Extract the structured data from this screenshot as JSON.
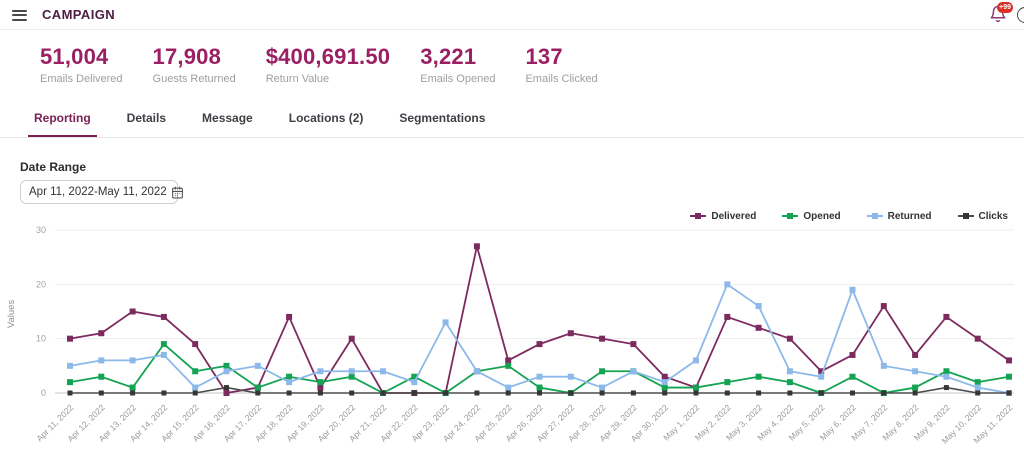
{
  "header": {
    "title": "CAMPAIGN",
    "notifications_badge": "+99"
  },
  "stats": [
    {
      "value": "51,004",
      "label": "Emails Delivered"
    },
    {
      "value": "17,908",
      "label": "Guests Returned"
    },
    {
      "value": "$400,691.50",
      "label": "Return Value"
    },
    {
      "value": "3,221",
      "label": "Emails Opened"
    },
    {
      "value": "137",
      "label": "Emails Clicked"
    }
  ],
  "tabs": [
    {
      "label": "Reporting",
      "active": true
    },
    {
      "label": "Details",
      "active": false
    },
    {
      "label": "Message",
      "active": false
    },
    {
      "label": "Locations (2)",
      "active": false
    },
    {
      "label": "Segmentations",
      "active": false
    }
  ],
  "filters": {
    "date_range_label": "Date Range",
    "date_range_value": "Apr 11, 2022-May 11, 2022"
  },
  "colors": {
    "brand": "#9a2063",
    "tab_active": "#7a2057",
    "grid": "#ededed",
    "axis_line": "#c4c4c4",
    "axis_text": "#a3a3a3"
  },
  "chart_data": {
    "type": "line",
    "title": "",
    "xlabel": "",
    "ylabel": "Values",
    "ylim": [
      0,
      30
    ],
    "yticks": [
      0,
      10,
      20,
      30
    ],
    "grid": "horizontal",
    "legend_position": "top-right",
    "categories": [
      "Apr 11, 2022",
      "Apr 12, 2022",
      "Apr 13, 2022",
      "Apr 14, 2022",
      "Apr 15, 2022",
      "Apr 16, 2022",
      "Apr 17, 2022",
      "Apr 18, 2022",
      "Apr 19, 2022",
      "Apr 20, 2022",
      "Apr 21, 2022",
      "Apr 22, 2022",
      "Apr 23, 2022",
      "Apr 24, 2022",
      "Apr 25, 2022",
      "Apr 26, 2022",
      "Apr 27, 2022",
      "Apr 28, 2022",
      "Apr 29, 2022",
      "Apr 30, 2022",
      "May 1, 2022",
      "May 2, 2022",
      "May 3, 2022",
      "May 4, 2022",
      "May 5, 2022",
      "May 6, 2022",
      "May 7, 2022",
      "May 8, 2022",
      "May 9, 2022",
      "May 10, 2022",
      "May 11, 2022"
    ],
    "series": [
      {
        "name": "Delivered",
        "color": "#7d2a5e",
        "values": [
          10,
          11,
          15,
          14,
          9,
          0,
          1,
          14,
          1,
          10,
          0,
          0,
          0,
          27,
          6,
          9,
          11,
          10,
          9,
          3,
          1,
          14,
          12,
          10,
          4,
          7,
          16,
          7,
          14,
          10,
          6
        ]
      },
      {
        "name": "Opened",
        "color": "#14a352",
        "values": [
          2,
          3,
          1,
          9,
          4,
          5,
          1,
          3,
          2,
          3,
          0,
          3,
          0,
          4,
          5,
          1,
          0,
          4,
          4,
          1,
          1,
          2,
          3,
          2,
          0,
          3,
          0,
          1,
          4,
          2,
          3
        ]
      },
      {
        "name": "Returned",
        "color": "#8cb9ea",
        "values": [
          5,
          6,
          6,
          7,
          1,
          4,
          5,
          2,
          4,
          4,
          4,
          2,
          13,
          4,
          1,
          3,
          3,
          1,
          4,
          2,
          6,
          20,
          16,
          4,
          3,
          19,
          5,
          4,
          3,
          1,
          0
        ]
      },
      {
        "name": "Clicks",
        "color": "#4d4d4d",
        "values": [
          0,
          0,
          0,
          0,
          0,
          1,
          0,
          0,
          0,
          0,
          0,
          0,
          0,
          0,
          0,
          0,
          0,
          0,
          0,
          0,
          0,
          0,
          0,
          0,
          0,
          0,
          0,
          0,
          1,
          0,
          0
        ]
      }
    ]
  }
}
